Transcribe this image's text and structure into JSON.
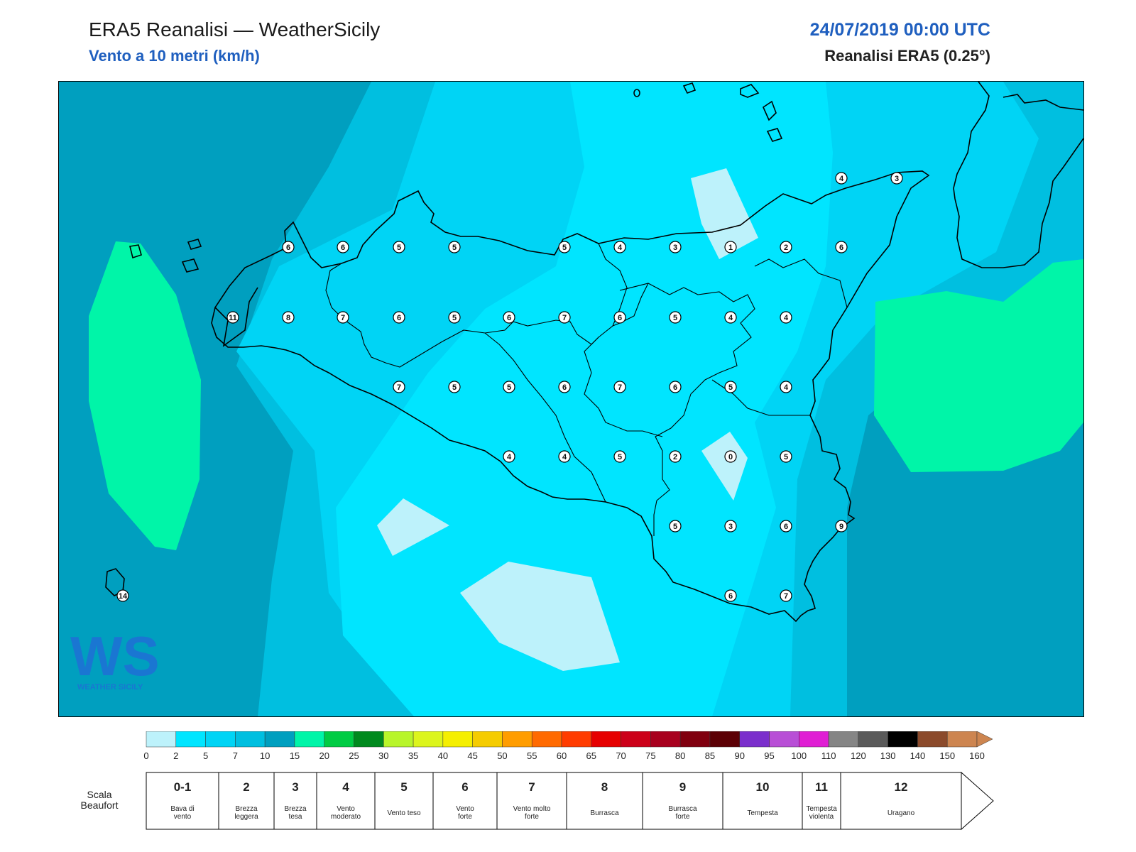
{
  "header": {
    "title": "ERA5 Reanalisi — WeatherSicily",
    "subtitle": "Vento a 10 metri (km/h)",
    "datetime": "24/07/2019 00:00 UTC",
    "source": "Reanalisi ERA5 (0.25°)"
  },
  "logo": {
    "text": "WEATHER SICILY",
    "mark": "WS"
  },
  "stations": [
    {
      "v": "6"
    },
    {
      "v": "6"
    },
    {
      "v": "5"
    },
    {
      "v": "5"
    },
    {
      "v": "5"
    },
    {
      "v": "4"
    },
    {
      "v": "3"
    },
    {
      "v": "1"
    },
    {
      "v": "2"
    },
    {
      "v": "6"
    },
    {
      "v": "11"
    },
    {
      "v": "8"
    },
    {
      "v": "7"
    },
    {
      "v": "6"
    },
    {
      "v": "5"
    },
    {
      "v": "6"
    },
    {
      "v": "7"
    },
    {
      "v": "6"
    },
    {
      "v": "5"
    },
    {
      "v": "4"
    },
    {
      "v": "4"
    },
    {
      "v": "7"
    },
    {
      "v": "5"
    },
    {
      "v": "5"
    },
    {
      "v": "6"
    },
    {
      "v": "7"
    },
    {
      "v": "6"
    },
    {
      "v": "5"
    },
    {
      "v": "4"
    },
    {
      "v": "4"
    },
    {
      "v": "4"
    },
    {
      "v": "5"
    },
    {
      "v": "2"
    },
    {
      "v": "0"
    },
    {
      "v": "5"
    },
    {
      "v": "5"
    },
    {
      "v": "3"
    },
    {
      "v": "6"
    },
    {
      "v": "9"
    },
    {
      "v": "6"
    },
    {
      "v": "7"
    },
    {
      "v": "14"
    },
    {
      "v": "4"
    },
    {
      "v": "3"
    }
  ],
  "colorbar": {
    "ticks": [
      "0",
      "2",
      "5",
      "7",
      "10",
      "15",
      "20",
      "25",
      "30",
      "35",
      "40",
      "45",
      "50",
      "55",
      "60",
      "65",
      "70",
      "75",
      "80",
      "85",
      "90",
      "95",
      "100",
      "110",
      "120",
      "130",
      "140",
      "150",
      "160"
    ],
    "colors": [
      "#bdf2fb",
      "#00e5ff",
      "#00d4f5",
      "#00bfe0",
      "#009fbf",
      "#00f5a8",
      "#00cc44",
      "#008a1e",
      "#b8f52a",
      "#dcf51c",
      "#f5ef00",
      "#f5cc00",
      "#ff9d00",
      "#ff6a00",
      "#ff3c00",
      "#e60000",
      "#cc0019",
      "#a8001e",
      "#80000f",
      "#5c0005",
      "#7b2fcc",
      "#b84fd6",
      "#e01fd4",
      "#858585",
      "#5a5a5a",
      "#000000",
      "#8b4a2b",
      "#cd8550"
    ]
  },
  "beaufort": {
    "label": "Scala Beaufort",
    "classes": [
      {
        "num": "0-1",
        "name": [
          "Bava di",
          "vento"
        ]
      },
      {
        "num": "2",
        "name": [
          "Brezza",
          "leggera"
        ]
      },
      {
        "num": "3",
        "name": [
          "Brezza",
          "tesa"
        ]
      },
      {
        "num": "4",
        "name": [
          "Vento",
          "moderato"
        ]
      },
      {
        "num": "5",
        "name": [
          "Vento teso"
        ]
      },
      {
        "num": "6",
        "name": [
          "Vento",
          "forte"
        ]
      },
      {
        "num": "7",
        "name": [
          "Vento molto",
          "forte"
        ]
      },
      {
        "num": "8",
        "name": [
          "Burrasca"
        ]
      },
      {
        "num": "9",
        "name": [
          "Burrasca",
          "forte"
        ]
      },
      {
        "num": "10",
        "name": [
          "Tempesta"
        ]
      },
      {
        "num": "11",
        "name": [
          "Tempesta",
          "violenta"
        ]
      },
      {
        "num": "12",
        "name": [
          "Uragano"
        ]
      }
    ]
  }
}
